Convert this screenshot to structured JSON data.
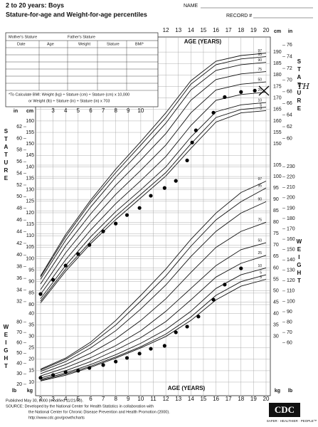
{
  "header": {
    "title": "2 to 20 years: Boys",
    "subtitle": "Stature-for-age and Weight-for-age percentiles",
    "name_label": "NAME",
    "record_label": "RECORD #"
  },
  "form": {
    "mother": "Mother's Stature",
    "father": "Father's Stature",
    "columns": [
      "Date",
      "Age",
      "Weight",
      "Stature",
      "BMI*"
    ],
    "bmi_note_1": "*To Calculate BMI: Weight (kg) ÷ Stature (cm) ÷ Stature (cm) x 10,000",
    "bmi_note_2": "or Weight (lb) ÷ Stature (in) ÷ Stature (in) x 703"
  },
  "annotations": [
    "TH"
  ],
  "chart_data": [
    {
      "type": "line",
      "x_label": "AGE (YEARS)",
      "y_label": "STATURE",
      "y_unit": "cm",
      "y2_unit": "in",
      "xlim": [
        2,
        20
      ],
      "xticks": [
        2,
        3,
        4,
        5,
        6,
        7,
        8,
        9,
        10,
        11,
        12,
        13,
        14,
        15,
        16,
        17,
        18,
        19,
        20
      ],
      "ylim": [
        80,
        195
      ],
      "yticks": [
        80,
        85,
        90,
        95,
        100,
        105,
        110,
        115,
        120,
        125,
        130,
        135,
        140,
        145,
        150,
        155,
        160,
        165,
        170,
        175,
        180,
        185,
        190
      ],
      "y2lim": [
        31.5,
        76.77
      ],
      "y2ticks": [
        32,
        34,
        36,
        38,
        40,
        42,
        44,
        46,
        48,
        50,
        52,
        54,
        56,
        58,
        60,
        62,
        64,
        66,
        68,
        70,
        72,
        74,
        76
      ],
      "grid": true,
      "x": [
        2,
        4,
        6,
        8,
        10,
        12,
        14,
        16,
        18,
        20
      ],
      "series": [
        {
          "name": "97",
          "color": "#111",
          "values": [
            92.5,
            110.5,
            125.5,
            139,
            151,
            163.5,
            177.5,
            186,
            188.5,
            189.5
          ]
        },
        {
          "name": "95",
          "color": "#111",
          "values": [
            92,
            109.5,
            124.5,
            137.5,
            149.5,
            161.5,
            176,
            184.5,
            187,
            188
          ]
        },
        {
          "name": "90",
          "color": "#111",
          "values": [
            91,
            108,
            122.5,
            135.5,
            147,
            159,
            173.5,
            182,
            184.5,
            185.5
          ]
        },
        {
          "name": "75",
          "color": "#111",
          "values": [
            89,
            105.5,
            119.5,
            132,
            143,
            154.5,
            169,
            178,
            180.5,
            181.5
          ]
        },
        {
          "name": "50",
          "color": "#111",
          "values": [
            86.5,
            102.5,
            116,
            128,
            138.5,
            149.5,
            163.5,
            173.5,
            176,
            177
          ]
        },
        {
          "name": "25",
          "color": "#111",
          "values": [
            84.5,
            99.5,
            112.5,
            124,
            134,
            144.5,
            158,
            169,
            171.5,
            172.5
          ]
        },
        {
          "name": "10",
          "color": "#111",
          "values": [
            82.5,
            97,
            109.5,
            120.5,
            130,
            140,
            153,
            164,
            167,
            168
          ]
        },
        {
          "name": "5",
          "color": "#111",
          "values": [
            81.5,
            95.5,
            107.5,
            118.5,
            128,
            137.5,
            150,
            161.5,
            165,
            166
          ]
        },
        {
          "name": "3",
          "color": "#111",
          "values": [
            80.7,
            94.5,
            106.5,
            117,
            126.5,
            136,
            148,
            159.5,
            163.5,
            164.5
          ]
        }
      ],
      "measurements": {
        "color": "#000",
        "x": [
          2.0,
          3.0,
          4.0,
          5.0,
          5.9,
          7.0,
          8.0,
          8.9,
          9.9,
          10.8,
          11.9,
          12.8,
          13.7,
          14.1,
          14.4,
          15.8,
          16.7,
          18.0,
          19.1
        ],
        "values": [
          84.6,
          90.8,
          97.0,
          102.0,
          106.0,
          111.9,
          115.3,
          119.0,
          122.1,
          127.4,
          130.8,
          133.9,
          142.8,
          150.6,
          155.9,
          163.6,
          170.4,
          172.6,
          173.2
        ]
      }
    },
    {
      "type": "line",
      "x_label": "AGE (YEARS)",
      "y_label": "WEIGHT",
      "y_unit": "kg",
      "y2_unit": "lb",
      "xlim": [
        2,
        20
      ],
      "xticks": [
        2,
        3,
        4,
        5,
        6,
        7,
        8,
        9,
        10,
        11,
        12,
        13,
        14,
        15,
        16,
        17,
        18,
        19,
        20
      ],
      "ylim": [
        5,
        105
      ],
      "yticks": [
        10,
        15,
        20,
        25,
        30,
        35,
        40,
        45,
        50,
        55,
        60,
        65,
        70,
        75,
        80,
        85,
        90,
        95,
        100,
        105
      ],
      "y2lim": [
        11.02,
        231.49
      ],
      "y2ticks": [
        20,
        30,
        40,
        50,
        60,
        70,
        80,
        90,
        100,
        110,
        120,
        130,
        140,
        150,
        160,
        170,
        180,
        190,
        200,
        210,
        220,
        230
      ],
      "grid": true,
      "x": [
        2,
        4,
        6,
        8,
        10,
        12,
        14,
        16,
        18,
        20
      ],
      "series": [
        {
          "name": "97",
          "color": "#111",
          "values": [
            15.7,
            20.5,
            27.5,
            37,
            48,
            59.5,
            72.5,
            84,
            93,
            98
          ]
        },
        {
          "name": "95",
          "color": "#111",
          "values": [
            15.3,
            20,
            26.5,
            35,
            45.5,
            56.5,
            69.5,
            81,
            89,
            95
          ]
        },
        {
          "name": "90",
          "color": "#111",
          "values": [
            14.7,
            19,
            25,
            32.5,
            42,
            52.5,
            65,
            76,
            84,
            89
          ]
        },
        {
          "name": "75",
          "color": "#111",
          "values": [
            13.7,
            17.7,
            22.7,
            29,
            37,
            46.5,
            58,
            69,
            76,
            80
          ]
        },
        {
          "name": "50",
          "color": "#111",
          "values": [
            12.7,
            16.3,
            20.7,
            26,
            32.5,
            41,
            51,
            61,
            68,
            71
          ]
        },
        {
          "name": "25",
          "color": "#111",
          "values": [
            11.8,
            15,
            19,
            24,
            29.5,
            36.5,
            46,
            56,
            62,
            65.5
          ]
        },
        {
          "name": "10",
          "color": "#111",
          "values": [
            11.2,
            14,
            17.7,
            22,
            27,
            33,
            41,
            51,
            57,
            60
          ]
        },
        {
          "name": "5",
          "color": "#111",
          "values": [
            10.8,
            13.5,
            17,
            21,
            25.5,
            31,
            38.5,
            48,
            54,
            57
          ]
        },
        {
          "name": "3",
          "color": "#111",
          "values": [
            10.5,
            13,
            16.5,
            20.5,
            25,
            30,
            37,
            46,
            52,
            55
          ]
        }
      ],
      "measurements": {
        "color": "#000",
        "x": [
          2.0,
          3.0,
          4.0,
          5.0,
          5.9,
          7.0,
          8.0,
          8.9,
          9.9,
          10.8,
          11.9,
          12.8,
          13.7,
          14.6,
          15.8,
          16.7,
          18.0
        ],
        "values": [
          11.9,
          13.1,
          14.4,
          15.0,
          16.2,
          17.5,
          19.0,
          20.6,
          22.5,
          24.6,
          25.9,
          31.8,
          34.3,
          38.7,
          46.1,
          52.7,
          59.8
        ]
      }
    }
  ],
  "footer": {
    "published": "Published May 30, 2000 (modified 11/21/00).",
    "source_1": "SOURCE: Developed by the National Center for Health Statistics in collaboration with",
    "source_2": "the National Center for Chronic Disease Prevention and Health Promotion (2000).",
    "url": "http://www.cdc.gov/growthcharts",
    "logo": "CDC",
    "tagline": "SAFER · HEALTHIER · PEOPLE™"
  }
}
